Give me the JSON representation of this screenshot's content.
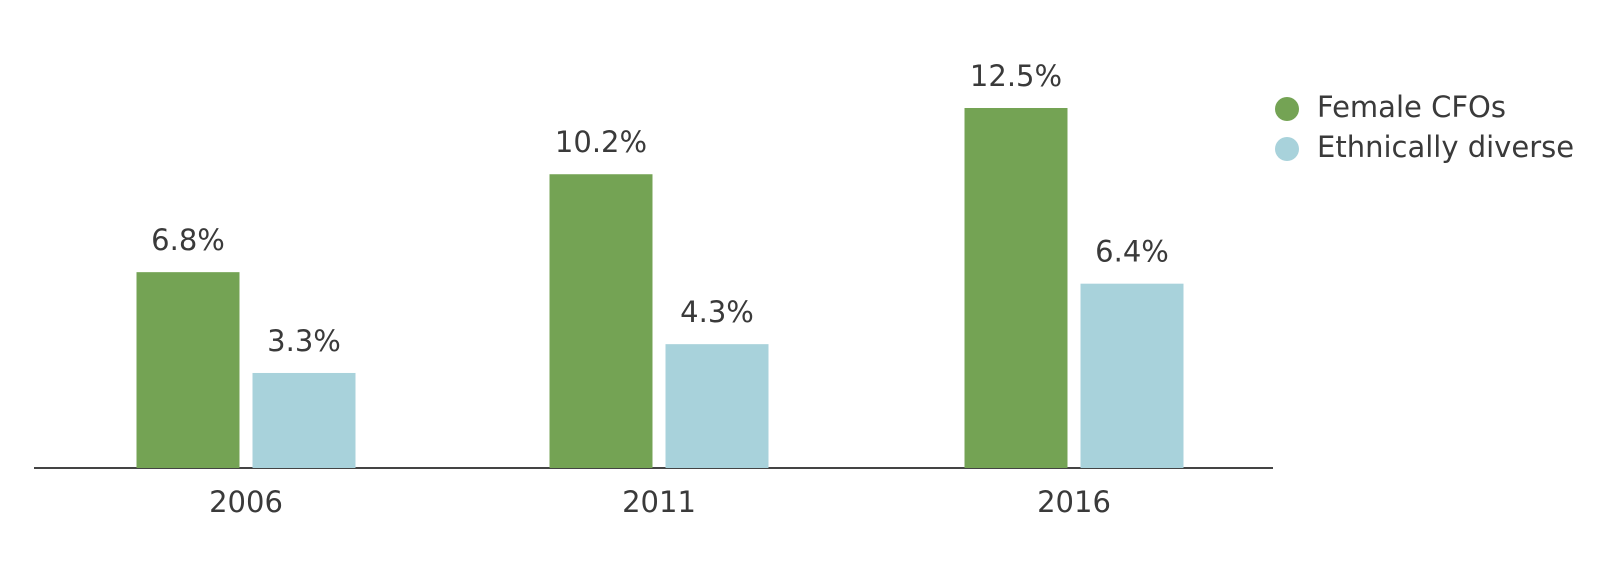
{
  "chart_data": {
    "type": "bar",
    "categories": [
      "2006",
      "2011",
      "2016"
    ],
    "series": [
      {
        "name": "Female CFOs",
        "color": "#74a354",
        "values": [
          6.8,
          10.2,
          12.5
        ],
        "value_labels": [
          "6.8%",
          "10.2%",
          "12.5%"
        ]
      },
      {
        "name": "Ethnically diverse",
        "color": "#a8d2db",
        "values": [
          3.3,
          4.3,
          6.4
        ],
        "value_labels": [
          "3.3%",
          "4.3%",
          "6.4%"
        ]
      }
    ],
    "legend": "top-right"
  }
}
